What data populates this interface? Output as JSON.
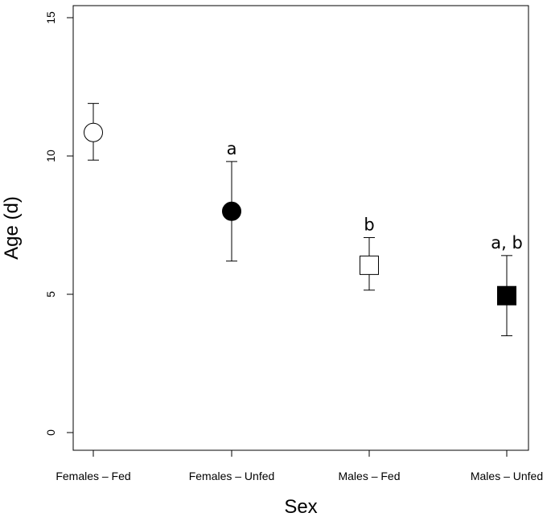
{
  "chart_data": {
    "type": "scatter",
    "title": "",
    "xlabel": "Sex",
    "ylabel": "Age (d)",
    "ylim": [
      0,
      15
    ],
    "yticks": [
      "0",
      "5",
      "10",
      "15"
    ],
    "grid": false,
    "categories": [
      "Females – Fed",
      "Females – Unfed",
      "Males – Fed",
      "Males – Unfed"
    ],
    "points": [
      {
        "category": "Females – Fed",
        "mean": 10.85,
        "lower": 9.85,
        "upper": 11.9,
        "marker": "open-circle",
        "annotation": ""
      },
      {
        "category": "Females – Unfed",
        "mean": 8.0,
        "lower": 6.2,
        "upper": 9.8,
        "marker": "filled-circle",
        "annotation": "a"
      },
      {
        "category": "Males – Fed",
        "mean": 6.05,
        "lower": 5.15,
        "upper": 7.05,
        "marker": "open-square",
        "annotation": "b"
      },
      {
        "category": "Males – Unfed",
        "mean": 4.95,
        "lower": 3.5,
        "upper": 6.4,
        "marker": "filled-square",
        "annotation": "a, b"
      }
    ]
  }
}
